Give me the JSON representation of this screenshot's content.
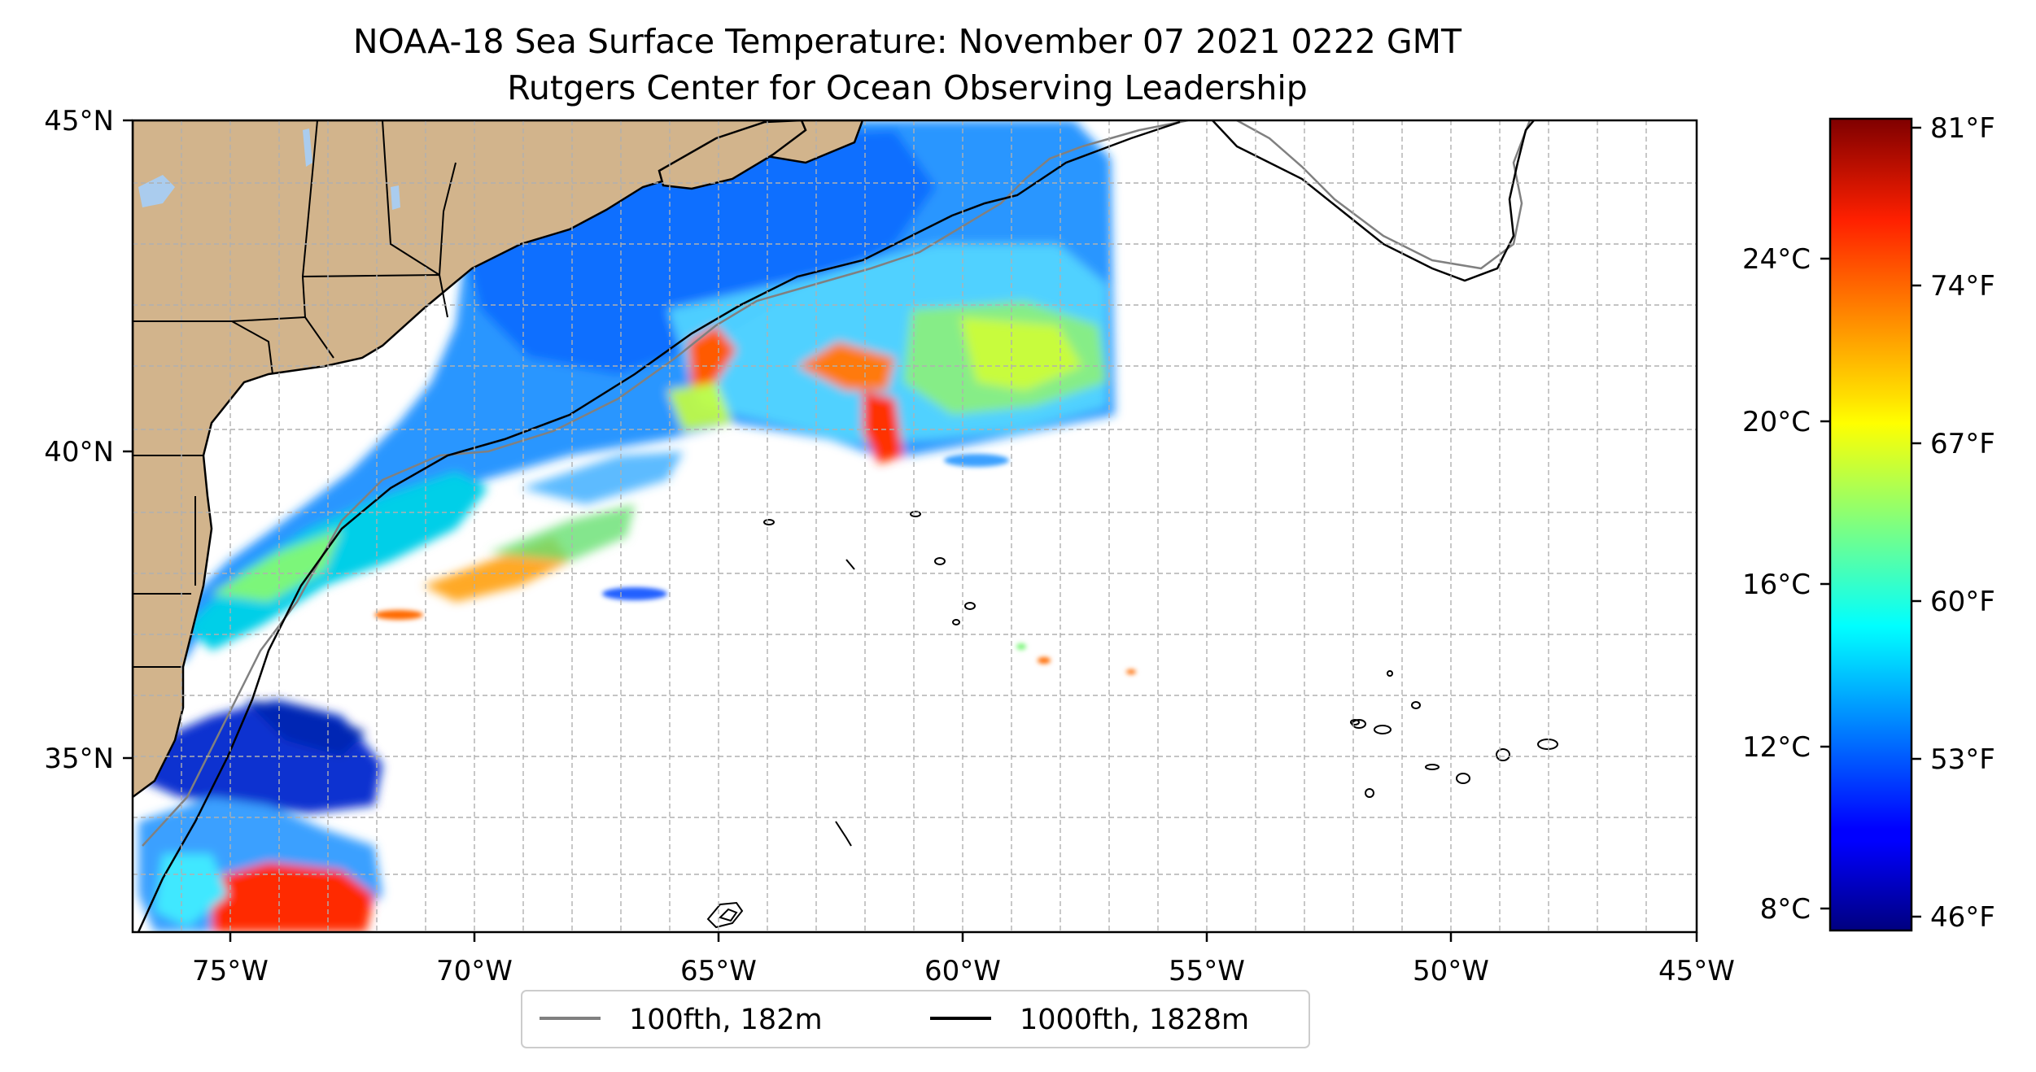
{
  "title": {
    "line1": "NOAA-18 Sea Surface Temperature: November 07 2021 0222 GMT",
    "line2": "Rutgers Center for Ocean Observing Leadership"
  },
  "map": {
    "lon_range": [
      -77,
      -45
    ],
    "lat_range": [
      32.5,
      45
    ],
    "lon_ticks": [
      "75°W",
      "70°W",
      "65°W",
      "60°W",
      "55°W",
      "50°W",
      "45°W"
    ],
    "lat_ticks": [
      "35°N",
      "40°N",
      "45°N"
    ],
    "grid": true,
    "land_color": "#d2b48c",
    "water_color": "#aaccee"
  },
  "legend": {
    "items": [
      {
        "label": "100fth, 182m",
        "color": "#808080"
      },
      {
        "label": "1000fth, 1828m",
        "color": "#000000"
      }
    ]
  },
  "colorbar": {
    "colormap": "jet",
    "range_c": [
      7.5,
      27.5
    ],
    "celsius_ticks": [
      "8°C",
      "12°C",
      "16°C",
      "20°C",
      "24°C"
    ],
    "fahrenheit_ticks": [
      "46°F",
      "53°F",
      "60°F",
      "67°F",
      "74°F",
      "81°F"
    ]
  }
}
